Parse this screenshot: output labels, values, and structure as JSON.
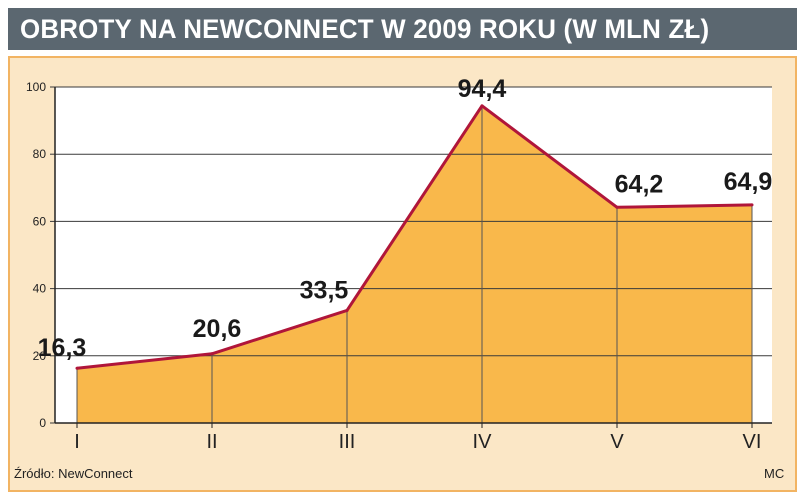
{
  "title": "OBROTY NA NEWCONNECT W 2009 ROKU (W MLN ZŁ)",
  "source": "Źródło: NewConnect",
  "author": "MC",
  "colors": {
    "title_bar": "#5b6770",
    "panel_bg": "#fbe7c6",
    "panel_border": "#f2b463",
    "area_fill": "#f9b84b",
    "line": "#b0163a",
    "grid": "#3a3a3a"
  },
  "chart_data": {
    "type": "area",
    "categories": [
      "I",
      "II",
      "III",
      "IV",
      "V",
      "VI"
    ],
    "values": [
      16.3,
      20.6,
      33.5,
      94.4,
      64.2,
      64.9
    ],
    "value_labels": [
      "16,3",
      "20,6",
      "33,5",
      "94,4",
      "64,2",
      "64,9"
    ],
    "y_ticks": [
      "0",
      "20",
      "40",
      "60",
      "80",
      "100"
    ],
    "ylim": [
      0,
      100
    ],
    "grid": true
  }
}
